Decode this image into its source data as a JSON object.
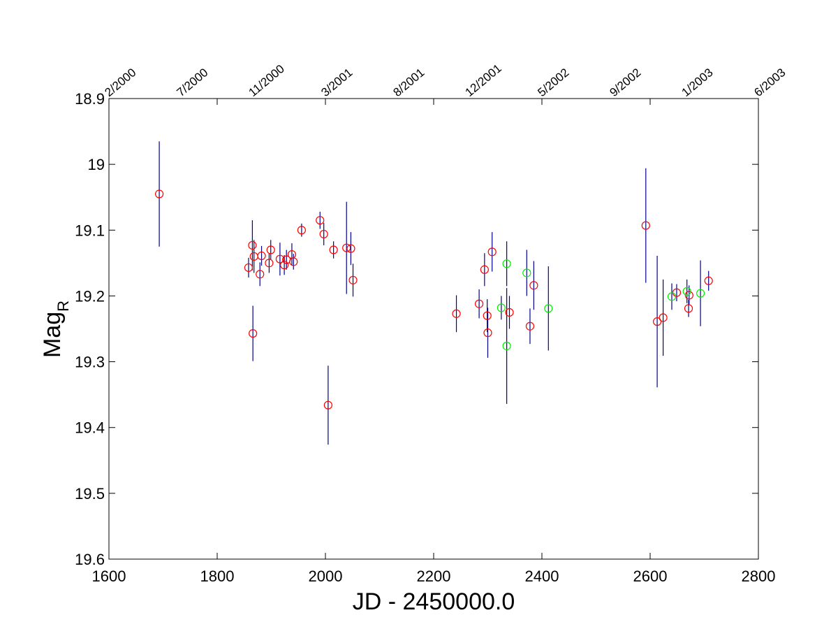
{
  "chart_data": {
    "type": "scatter",
    "title": "",
    "xlabel": "JD - 2450000.0",
    "ylabel": "Mag",
    "ylabel_subscript": "R",
    "xlim": [
      1600,
      2800
    ],
    "ylim": [
      18.9,
      19.6
    ],
    "y_reversed": true,
    "grid": false,
    "x_ticks": [
      1600,
      1800,
      2000,
      2200,
      2400,
      2600,
      2800
    ],
    "x_tick_labels": [
      "1600",
      "1800",
      "2000",
      "2200",
      "2400",
      "2600",
      "2800"
    ],
    "y_ticks": [
      18.9,
      19.0,
      19.1,
      19.2,
      19.3,
      19.4,
      19.5,
      19.6
    ],
    "y_tick_labels": [
      "18.9",
      "19",
      "19.1",
      "19.2",
      "19.3",
      "19.4",
      "19.5",
      "19.6"
    ],
    "top_axis_ticks": [
      {
        "jd": 1600,
        "label": "2/2000"
      },
      {
        "jd": 1733,
        "label": "7/2000"
      },
      {
        "jd": 1866,
        "label": "11/2000"
      },
      {
        "jd": 2000,
        "label": "3/2001"
      },
      {
        "jd": 2133,
        "label": "8/2001"
      },
      {
        "jd": 2266,
        "label": "12/2001"
      },
      {
        "jd": 2400,
        "label": "5/2002"
      },
      {
        "jd": 2533,
        "label": "9/2002"
      },
      {
        "jd": 2666,
        "label": "1/2003"
      },
      {
        "jd": 2800,
        "label": "6/2003"
      }
    ],
    "errorbar_color": "#00008b",
    "series": [
      {
        "color": "#ff0000",
        "marker": "circle",
        "points": [
          {
            "x": 1693,
            "y": 19.045,
            "err": 0.08
          },
          {
            "x": 1858,
            "y": 19.157,
            "err": 0.015
          },
          {
            "x": 1865,
            "y": 19.123,
            "err": 0.038
          },
          {
            "x": 1866,
            "y": 19.257,
            "err": 0.042
          },
          {
            "x": 1868,
            "y": 19.14,
            "err": 0.025
          },
          {
            "x": 1879,
            "y": 19.167,
            "err": 0.018
          },
          {
            "x": 1882,
            "y": 19.139,
            "err": 0.015
          },
          {
            "x": 1896,
            "y": 19.15,
            "err": 0.015
          },
          {
            "x": 1899,
            "y": 19.13,
            "err": 0.015
          },
          {
            "x": 1916,
            "y": 19.144,
            "err": 0.025
          },
          {
            "x": 1924,
            "y": 19.153,
            "err": 0.015
          },
          {
            "x": 1928,
            "y": 19.145,
            "err": 0.015
          },
          {
            "x": 1938,
            "y": 19.137,
            "err": 0.017
          },
          {
            "x": 1941,
            "y": 19.148,
            "err": 0.012
          },
          {
            "x": 1956,
            "y": 19.1,
            "err": 0.01
          },
          {
            "x": 1990,
            "y": 19.085,
            "err": 0.013
          },
          {
            "x": 1997,
            "y": 19.106,
            "err": 0.017
          },
          {
            "x": 2005,
            "y": 19.366,
            "err": 0.06
          },
          {
            "x": 2015,
            "y": 19.13,
            "err": 0.013
          },
          {
            "x": 2039,
            "y": 19.127,
            "err": 0.07
          },
          {
            "x": 2047,
            "y": 19.128,
            "err": 0.025
          },
          {
            "x": 2051,
            "y": 19.176,
            "err": 0.025
          },
          {
            "x": 2242,
            "y": 19.227,
            "err": 0.028
          },
          {
            "x": 2284,
            "y": 19.212,
            "err": 0.022
          },
          {
            "x": 2294,
            "y": 19.16,
            "err": 0.025
          },
          {
            "x": 2299,
            "y": 19.23,
            "err": 0.025
          },
          {
            "x": 2300,
            "y": 19.256,
            "err": 0.038
          },
          {
            "x": 2308,
            "y": 19.133,
            "err": 0.03
          },
          {
            "x": 2340,
            "y": 19.225,
            "err": 0.025
          },
          {
            "x": 2378,
            "y": 19.246,
            "err": 0.027
          },
          {
            "x": 2385,
            "y": 19.184,
            "err": 0.037
          },
          {
            "x": 2592,
            "y": 19.093,
            "err": 0.087
          },
          {
            "x": 2613,
            "y": 19.239,
            "err": 0.1
          },
          {
            "x": 2624,
            "y": 19.233,
            "err": 0.058
          },
          {
            "x": 2649,
            "y": 19.195,
            "err": 0.013
          },
          {
            "x": 2671,
            "y": 19.219,
            "err": 0.013
          },
          {
            "x": 2672,
            "y": 19.199,
            "err": 0.015
          },
          {
            "x": 2708,
            "y": 19.177,
            "err": 0.015
          }
        ]
      },
      {
        "color": "#00ee00",
        "marker": "circle",
        "points": [
          {
            "x": 2325,
            "y": 19.218,
            "err": 0.018
          },
          {
            "x": 2335,
            "y": 19.151,
            "err": 0.034
          },
          {
            "x": 2335,
            "y": 19.276,
            "err": 0.088
          },
          {
            "x": 2372,
            "y": 19.165,
            "err": 0.035
          },
          {
            "x": 2412,
            "y": 19.219,
            "err": 0.064
          },
          {
            "x": 2640,
            "y": 19.201,
            "err": 0.02
          },
          {
            "x": 2668,
            "y": 19.193,
            "err": 0.018
          },
          {
            "x": 2693,
            "y": 19.196,
            "err": 0.05
          }
        ]
      }
    ]
  }
}
